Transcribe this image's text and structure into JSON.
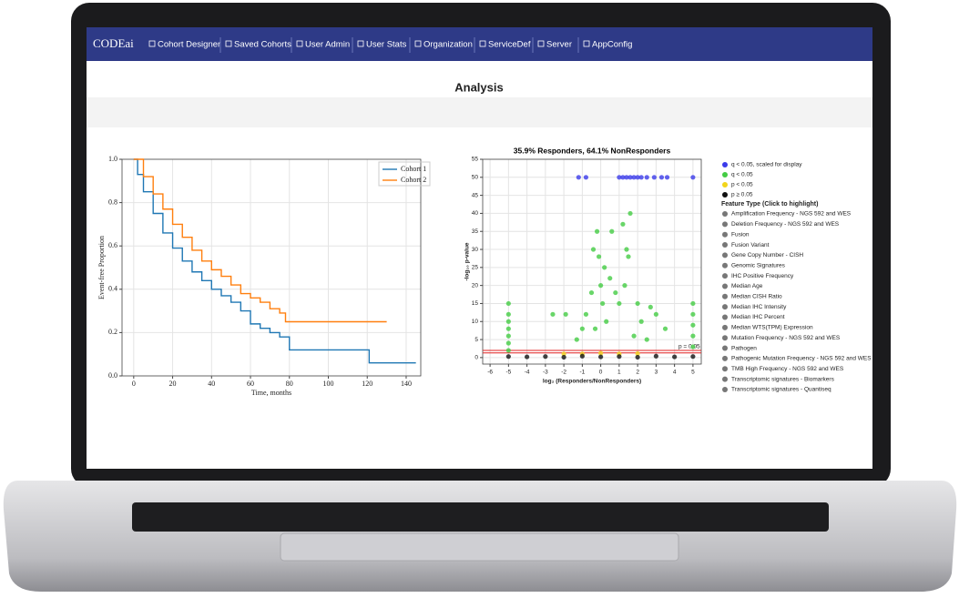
{
  "nav": {
    "brand": "CODEai",
    "items": [
      "Cohort Designer",
      "Saved Cohorts",
      "User Admin",
      "User Stats",
      "Organization",
      "ServiceDef",
      "Server",
      "AppConfig"
    ]
  },
  "page_title": "Analysis",
  "chart_data": [
    {
      "type": "line",
      "step": true,
      "xlabel": "Time, months",
      "ylabel": "Event-free Proportion",
      "xlim": [
        -6,
        147.5
      ],
      "ylim": [
        0,
        1.0
      ],
      "xticks": [
        0,
        20,
        40,
        60,
        80,
        100,
        120,
        140
      ],
      "yticks": [
        {
          "value": 0,
          "label": "0.0"
        },
        {
          "value": 0.2,
          "label": "0.2"
        },
        {
          "value": 0.4,
          "label": "0.4"
        },
        {
          "value": 0.6,
          "label": "0.6"
        },
        {
          "value": 0.8,
          "label": "0.8"
        },
        {
          "value": 1.0,
          "label": "1.0"
        }
      ],
      "grid": true,
      "legend": "upper right",
      "series": [
        {
          "name": "Cohort 1",
          "color": "#1f77b4",
          "x": [
            0,
            2,
            5,
            10,
            15,
            20,
            25,
            30,
            35,
            40,
            45,
            50,
            55,
            60,
            65,
            70,
            75,
            80,
            90,
            120,
            121,
            145
          ],
          "values": [
            1.0,
            0.93,
            0.85,
            0.75,
            0.66,
            0.59,
            0.53,
            0.48,
            0.44,
            0.4,
            0.37,
            0.34,
            0.3,
            0.24,
            0.22,
            0.2,
            0.18,
            0.12,
            0.12,
            0.12,
            0.06,
            0.06
          ]
        },
        {
          "name": "Cohort 2",
          "color": "#ff7f0e",
          "x": [
            0,
            5,
            10,
            15,
            20,
            25,
            30,
            35,
            40,
            45,
            50,
            55,
            60,
            65,
            70,
            75,
            78,
            130
          ],
          "values": [
            1.0,
            0.92,
            0.84,
            0.77,
            0.7,
            0.64,
            0.58,
            0.53,
            0.49,
            0.46,
            0.42,
            0.38,
            0.36,
            0.34,
            0.31,
            0.29,
            0.25,
            0.25
          ]
        }
      ]
    },
    {
      "type": "scatter",
      "title": "35.9% Responders, 64.1% NonResponders",
      "xlabel": "log₂ (Responders/NonResponders)",
      "ylabel": "-log₁₀ p-value",
      "xlim": [
        -6.4,
        5.45
      ],
      "ylim": [
        -1.8,
        55
      ],
      "xticks": [
        -6,
        -5,
        -4,
        -3,
        -2,
        -1,
        0,
        1,
        2,
        3,
        4,
        5
      ],
      "yticks": [
        0,
        5,
        10,
        15,
        20,
        25,
        30,
        35,
        40,
        45,
        50,
        55
      ],
      "grid": true,
      "hlines": [
        1.3,
        2
      ],
      "hline_color": "#e02020",
      "annotation": "p = 0.05",
      "series": [
        {
          "name": "q < 0.05, scaled for display",
          "color": "#3b3bea",
          "x": [
            -1.2,
            -0.8,
            1.0,
            1.2,
            1.4,
            1.6,
            1.8,
            2.0,
            2.2,
            2.5,
            2.9,
            3.3,
            3.6,
            5.0
          ],
          "values": [
            50,
            50,
            50,
            50,
            50,
            50,
            50,
            50,
            50,
            50,
            50,
            50,
            50,
            50
          ]
        },
        {
          "name": "q < 0.05",
          "color": "#44cc44",
          "x": [
            -5,
            -5,
            -5,
            -5,
            -5,
            -5,
            -5,
            5,
            5,
            5,
            5,
            5,
            -2.6,
            -1.9,
            -0.5,
            0,
            0.2,
            -0.2,
            -0.1,
            0.5,
            1,
            1.5,
            1.3,
            1.6,
            1.4,
            0.8,
            2,
            -0.8,
            -1,
            0.3,
            -0.3,
            2.2,
            1.8,
            0.6,
            -0.4,
            1.2,
            0.1,
            2.7,
            3,
            -1.3,
            2.5,
            3.5
          ],
          "values": [
            15,
            12,
            10,
            8,
            6,
            4,
            2,
            15,
            12,
            9,
            6,
            3,
            12,
            12,
            18,
            20,
            25,
            35,
            28,
            22,
            15,
            28,
            20,
            40,
            30,
            18,
            15,
            12,
            8,
            10,
            8,
            10,
            6,
            35,
            30,
            37,
            15,
            14,
            12,
            5,
            5,
            8
          ]
        },
        {
          "name": "p < 0.05",
          "color": "#f2d51b",
          "x": [
            -2,
            -1,
            0,
            1,
            2
          ],
          "values": [
            1,
            1,
            1.2,
            1,
            1.1
          ]
        },
        {
          "name": "p ≥ 0.05",
          "color": "#111111",
          "x": [
            -5,
            -4,
            -3,
            -2,
            -1,
            0,
            1,
            2,
            3,
            4,
            5
          ],
          "values": [
            0.3,
            0.2,
            0.3,
            0.1,
            0.4,
            0.2,
            0.3,
            0.1,
            0.4,
            0.2,
            0.3
          ]
        }
      ],
      "feature_title": "Feature Type (Click to highlight)",
      "feature_types": [
        "Amplification Frequency - NGS 592 and WES",
        "Deletion Frequency - NGS 592 and WES",
        "Fusion",
        "Fusion Variant",
        "Gene Copy Number - CISH",
        "Genomic Signatures",
        "IHC Positive Frequency",
        "Median Age",
        "Median CISH Ratio",
        "Median IHC Intensity",
        "Median IHC Percent",
        "Median WTS(TPM) Expression",
        "Mutation Frequency - NGS 592 and WES",
        "Pathogen",
        "Pathogenic Mutation Frequency - NGS 592 and WES",
        "TMB High Frequency - NGS 592 and WES",
        "Transcriptomic signatures - Biomarkers",
        "Transcriptomic signatures - Quantiseq"
      ]
    }
  ]
}
